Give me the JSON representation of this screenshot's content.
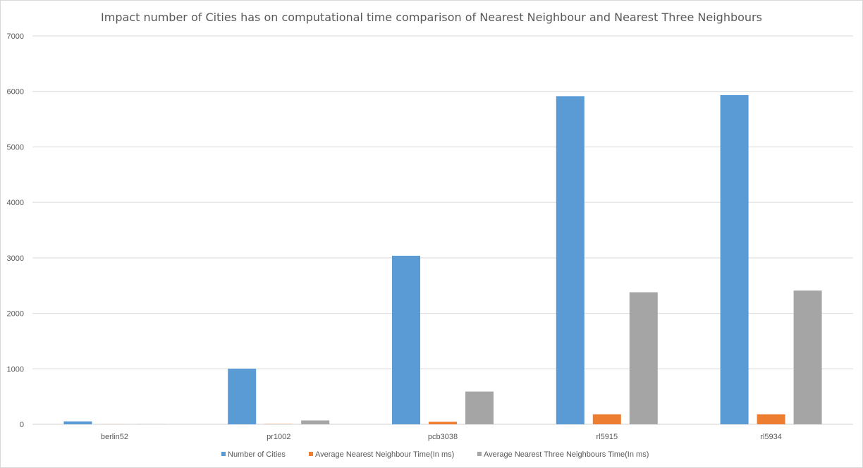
{
  "chart_data": {
    "type": "bar",
    "title": "Impact number of Cities has on computational time comparison of Nearest Neighbour and Nearest Three Neighbours",
    "xlabel": "",
    "ylabel": "",
    "categories": [
      "berlin52",
      "pr1002",
      "pcb3038",
      "rl5915",
      "rl5934"
    ],
    "series": [
      {
        "name": "Number of Cities",
        "color": "#5b9bd5",
        "values": [
          52,
          1002,
          3038,
          5915,
          5934
        ]
      },
      {
        "name": "Average Nearest Neighbour Time(In ms)",
        "color": "#ed7d31",
        "values": [
          1,
          5,
          45,
          180,
          180
        ]
      },
      {
        "name": "Average Nearest Three Neighbours Time(In ms)",
        "color": "#a5a5a5",
        "values": [
          3,
          70,
          590,
          2380,
          2410
        ]
      }
    ],
    "ylim": [
      0,
      7000
    ],
    "yticks": [
      "0",
      "1000",
      "2000",
      "3000",
      "4000",
      "5000",
      "6000",
      "7000"
    ],
    "grid": true,
    "legend_position": "bottom"
  }
}
